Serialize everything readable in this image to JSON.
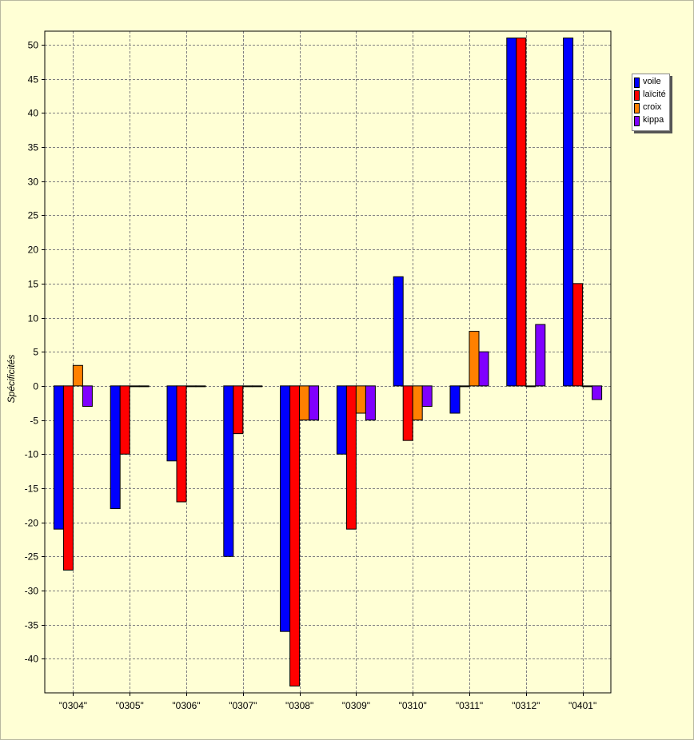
{
  "chart_data": {
    "type": "bar",
    "ylabel": "Spécificités",
    "xlabel": "",
    "ylim": [
      -45,
      52
    ],
    "yticks": [
      50,
      45,
      40,
      35,
      30,
      25,
      20,
      15,
      10,
      5,
      0,
      -5,
      -10,
      -15,
      -20,
      -25,
      -30,
      -35,
      -40
    ],
    "grid": true,
    "legend_position": "top-right",
    "categories": [
      "\"0304\"",
      "\"0305\"",
      "\"0306\"",
      "\"0307\"",
      "\"0308\"",
      "\"0309\"",
      "\"0310\"",
      "\"0311\"",
      "\"0312\"",
      "\"0401\""
    ],
    "series": [
      {
        "name": "voile",
        "color": "#0000ff",
        "values": [
          -21,
          -18,
          -11,
          -25,
          -36,
          -10,
          16,
          -4,
          51,
          51
        ]
      },
      {
        "name": "laïcité",
        "color": "#ff0000",
        "values": [
          -27,
          -10,
          -17,
          -7,
          -44,
          -21,
          -8,
          0,
          51,
          15
        ]
      },
      {
        "name": "croix",
        "color": "#ff8000",
        "values": [
          3,
          0,
          0,
          0,
          -5,
          -4,
          -5,
          8,
          0,
          0
        ]
      },
      {
        "name": "kippa",
        "color": "#8000ff",
        "values": [
          -3,
          0,
          0,
          0,
          -5,
          -5,
          -3,
          5,
          9,
          -2
        ]
      }
    ]
  }
}
